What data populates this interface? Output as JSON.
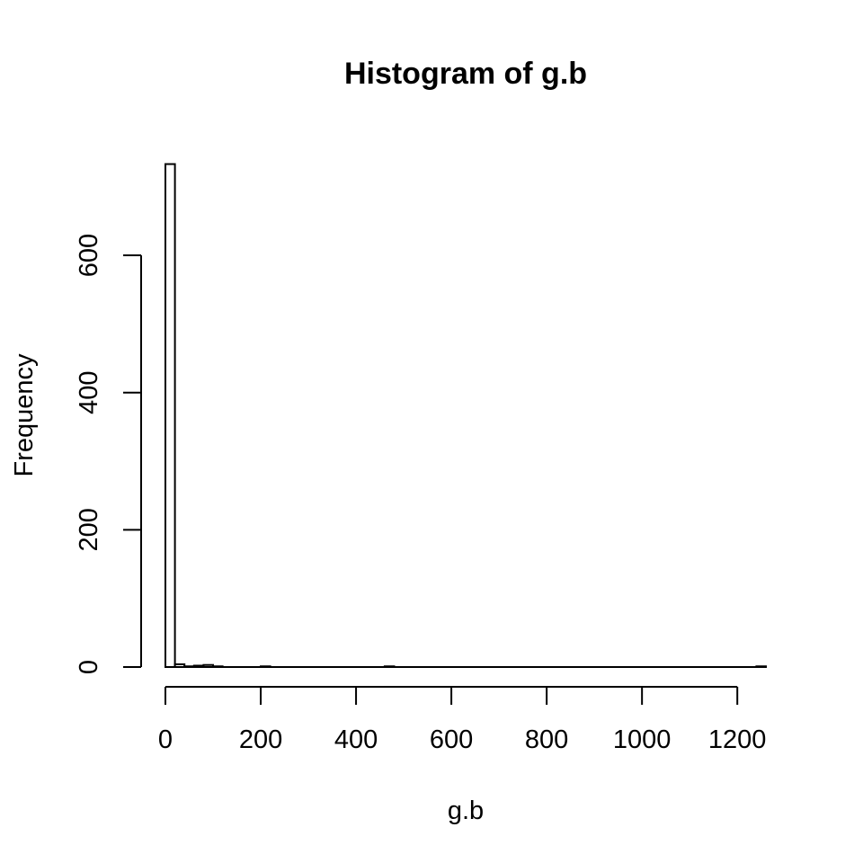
{
  "chart_data": {
    "type": "bar",
    "title": "Histogram of g.b",
    "xlabel": "g.b",
    "ylabel": "Frequency",
    "xlim": [
      0,
      1260
    ],
    "ylim": [
      0,
      735
    ],
    "bin_width": 20,
    "x_ticks": [
      0,
      200,
      400,
      600,
      800,
      1000,
      1200
    ],
    "y_ticks": [
      0,
      200,
      400,
      600
    ],
    "bins": [
      {
        "start": 0,
        "end": 20,
        "count": 733
      },
      {
        "start": 20,
        "end": 40,
        "count": 4
      },
      {
        "start": 40,
        "end": 60,
        "count": 1
      },
      {
        "start": 60,
        "end": 80,
        "count": 2
      },
      {
        "start": 80,
        "end": 100,
        "count": 3
      },
      {
        "start": 100,
        "end": 120,
        "count": 1
      },
      {
        "start": 200,
        "end": 220,
        "count": 1
      },
      {
        "start": 460,
        "end": 480,
        "count": 1
      },
      {
        "start": 1240,
        "end": 1260,
        "count": 1
      }
    ]
  }
}
